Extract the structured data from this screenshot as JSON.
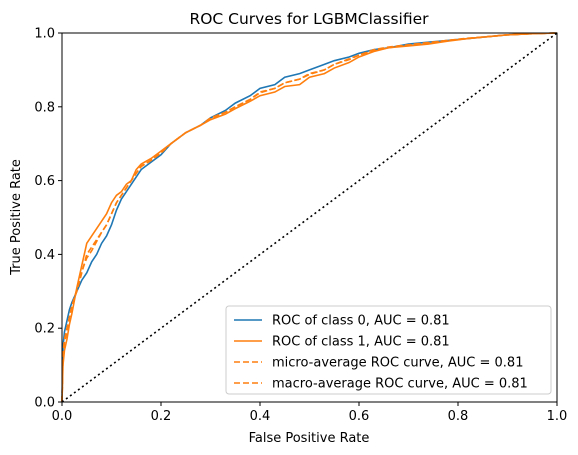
{
  "chart_data": {
    "type": "line",
    "title": "ROC Curves for LGBMClassifier",
    "xlabel": "False Positive Rate",
    "ylabel": "True Positive Rate",
    "xlim": [
      0.0,
      1.0
    ],
    "ylim": [
      0.0,
      1.0
    ],
    "xticks": [
      "0.0",
      "0.2",
      "0.4",
      "0.6",
      "0.8",
      "1.0"
    ],
    "yticks": [
      "0.0",
      "0.2",
      "0.4",
      "0.6",
      "0.8",
      "1.0"
    ],
    "grid": false,
    "legend_position": "lower-right",
    "series": [
      {
        "name": "ROC of class 0, AUC = 0.81",
        "color": "#1f77b4",
        "style": "solid",
        "x": [
          0.0,
          0.002,
          0.005,
          0.01,
          0.015,
          0.02,
          0.03,
          0.04,
          0.05,
          0.06,
          0.07,
          0.08,
          0.09,
          0.1,
          0.11,
          0.12,
          0.13,
          0.14,
          0.15,
          0.16,
          0.18,
          0.2,
          0.22,
          0.25,
          0.28,
          0.3,
          0.33,
          0.35,
          0.38,
          0.4,
          0.43,
          0.45,
          0.48,
          0.5,
          0.53,
          0.55,
          0.58,
          0.6,
          0.63,
          0.66,
          0.7,
          0.74,
          0.78,
          0.82,
          0.86,
          0.9,
          0.95,
          1.0
        ],
        "y": [
          0.0,
          0.15,
          0.19,
          0.22,
          0.25,
          0.27,
          0.3,
          0.33,
          0.35,
          0.38,
          0.4,
          0.43,
          0.45,
          0.48,
          0.52,
          0.55,
          0.57,
          0.59,
          0.61,
          0.63,
          0.65,
          0.67,
          0.7,
          0.73,
          0.75,
          0.77,
          0.79,
          0.81,
          0.83,
          0.85,
          0.86,
          0.88,
          0.89,
          0.9,
          0.915,
          0.925,
          0.935,
          0.945,
          0.955,
          0.96,
          0.97,
          0.975,
          0.98,
          0.985,
          0.99,
          0.995,
          0.998,
          1.0
        ]
      },
      {
        "name": "ROC of class 1, AUC = 0.81",
        "color": "#ff7f0e",
        "style": "solid",
        "x": [
          0.0,
          0.002,
          0.005,
          0.01,
          0.015,
          0.02,
          0.03,
          0.04,
          0.05,
          0.06,
          0.07,
          0.08,
          0.09,
          0.1,
          0.11,
          0.12,
          0.13,
          0.14,
          0.15,
          0.16,
          0.18,
          0.2,
          0.22,
          0.25,
          0.28,
          0.3,
          0.33,
          0.35,
          0.38,
          0.4,
          0.43,
          0.45,
          0.48,
          0.5,
          0.53,
          0.55,
          0.58,
          0.6,
          0.63,
          0.66,
          0.7,
          0.74,
          0.78,
          0.82,
          0.86,
          0.9,
          0.95,
          1.0
        ],
        "y": [
          0.0,
          0.1,
          0.14,
          0.17,
          0.21,
          0.24,
          0.31,
          0.37,
          0.43,
          0.45,
          0.47,
          0.49,
          0.51,
          0.54,
          0.56,
          0.57,
          0.59,
          0.6,
          0.63,
          0.645,
          0.66,
          0.68,
          0.7,
          0.73,
          0.75,
          0.765,
          0.78,
          0.795,
          0.815,
          0.83,
          0.84,
          0.855,
          0.86,
          0.88,
          0.89,
          0.905,
          0.92,
          0.935,
          0.95,
          0.96,
          0.965,
          0.97,
          0.978,
          0.985,
          0.99,
          0.995,
          0.998,
          1.0
        ]
      },
      {
        "name": "micro-average ROC curve, AUC = 0.81",
        "color": "#ff7f0e",
        "style": "dashed",
        "x": [
          0.0,
          0.002,
          0.005,
          0.01,
          0.015,
          0.02,
          0.03,
          0.04,
          0.05,
          0.06,
          0.07,
          0.08,
          0.09,
          0.1,
          0.11,
          0.12,
          0.13,
          0.14,
          0.15,
          0.16,
          0.18,
          0.2,
          0.22,
          0.25,
          0.28,
          0.3,
          0.33,
          0.35,
          0.38,
          0.4,
          0.43,
          0.45,
          0.48,
          0.5,
          0.53,
          0.55,
          0.58,
          0.6,
          0.63,
          0.66,
          0.7,
          0.74,
          0.78,
          0.82,
          0.86,
          0.9,
          0.95,
          1.0
        ],
        "y": [
          0.0,
          0.12,
          0.16,
          0.19,
          0.23,
          0.26,
          0.3,
          0.35,
          0.4,
          0.42,
          0.44,
          0.46,
          0.48,
          0.51,
          0.54,
          0.56,
          0.58,
          0.6,
          0.62,
          0.64,
          0.655,
          0.675,
          0.7,
          0.73,
          0.75,
          0.77,
          0.785,
          0.8,
          0.82,
          0.84,
          0.85,
          0.865,
          0.875,
          0.89,
          0.9,
          0.915,
          0.93,
          0.94,
          0.955,
          0.962,
          0.968,
          0.974,
          0.98,
          0.986,
          0.99,
          0.995,
          0.998,
          1.0
        ]
      },
      {
        "name": "macro-average ROC curve, AUC = 0.81",
        "color": "#ff7f0e",
        "style": "dashed",
        "x": [
          0.0,
          0.002,
          0.005,
          0.01,
          0.015,
          0.02,
          0.03,
          0.04,
          0.05,
          0.06,
          0.07,
          0.08,
          0.09,
          0.1,
          0.11,
          0.12,
          0.13,
          0.14,
          0.15,
          0.16,
          0.18,
          0.2,
          0.22,
          0.25,
          0.28,
          0.3,
          0.33,
          0.35,
          0.38,
          0.4,
          0.43,
          0.45,
          0.48,
          0.5,
          0.53,
          0.55,
          0.58,
          0.6,
          0.63,
          0.66,
          0.7,
          0.74,
          0.78,
          0.82,
          0.86,
          0.9,
          0.95,
          1.0
        ],
        "y": [
          0.0,
          0.13,
          0.17,
          0.2,
          0.23,
          0.26,
          0.305,
          0.355,
          0.39,
          0.41,
          0.435,
          0.46,
          0.48,
          0.51,
          0.54,
          0.56,
          0.58,
          0.6,
          0.62,
          0.638,
          0.655,
          0.675,
          0.7,
          0.73,
          0.75,
          0.768,
          0.785,
          0.8,
          0.82,
          0.838,
          0.85,
          0.865,
          0.875,
          0.888,
          0.9,
          0.915,
          0.928,
          0.94,
          0.952,
          0.96,
          0.967,
          0.973,
          0.98,
          0.985,
          0.99,
          0.995,
          0.998,
          1.0
        ]
      },
      {
        "name": "",
        "color": "#000000",
        "style": "dotted",
        "x": [
          0.0,
          1.0
        ],
        "y": [
          0.0,
          1.0
        ]
      }
    ]
  }
}
